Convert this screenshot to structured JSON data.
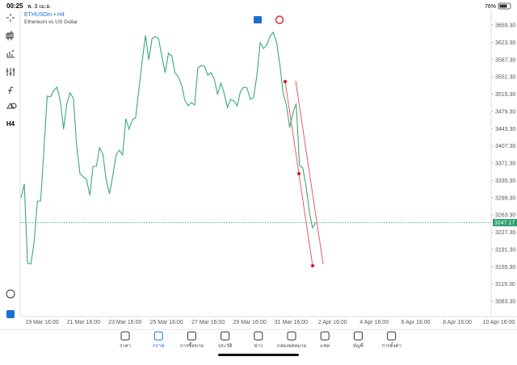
{
  "status_bar": {
    "time": "00:25",
    "date": "พ. 3 เม.ย.",
    "battery": "76%"
  },
  "chart": {
    "symbol": "ETHUSDm • H4",
    "description": "Ethereum vs US Dollar",
    "timeframe": "H4",
    "values": [
      3298.9,
      3327.5,
      3162.5,
      3160.8,
      3206.3,
      3292.2,
      3292.2,
      3400,
      3511.1,
      3509.4,
      3522.9,
      3529.6,
      3501,
      3442.1,
      3496,
      3517.8,
      3506.1,
      3406.7,
      3349.4,
      3342.7,
      3337.7,
      3304,
      3364.6,
      3364.6,
      3403.3,
      3389.9,
      3337.7,
      3307.3,
      3344.4,
      3388.2,
      3398.3,
      3388.2,
      3464,
      3442.1,
      3462.3,
      3465.6,
      3526.3,
      3585.2,
      3637.4,
      3586.9,
      3630.7,
      3635.7,
      3630.7,
      3593.6,
      3559.9,
      3600.4,
      3595.3,
      3559.9,
      3551.5,
      3534.7,
      3502.7,
      3490.9,
      3497.6,
      3492.6,
      3570,
      3575.1,
      3573.4,
      3554.9,
      3559.9,
      3546.5,
      3514.5,
      3538.1,
      3517.8,
      3487.5,
      3504.4,
      3501,
      3490.9,
      3521.2,
      3529.6,
      3527.9,
      3504.4,
      3507.7,
      3554.9,
      3622.3,
      3610.5,
      3617.2,
      3635.7,
      3644.1,
      3623.9,
      3576.8,
      3517.8,
      3492.6,
      3445.4,
      3475.7,
      3496,
      3366.3,
      3361.2,
      3324.2,
      3270.3,
      3236.6,
      3247.17
    ],
    "last_price": 3247.17,
    "ylim": [
      3083.3,
      3659.3
    ],
    "yticks": [
      {
        "value": 3659.3,
        "label": "3659.30"
      },
      {
        "value": 3623.3,
        "label": "3623.30"
      },
      {
        "value": 3587.3,
        "label": "3587.30"
      },
      {
        "value": 3551.3,
        "label": "3551.30"
      },
      {
        "value": 3515.3,
        "label": "3515.30"
      },
      {
        "value": 3479.3,
        "label": "3479.30"
      },
      {
        "value": 3443.3,
        "label": "3443.30"
      },
      {
        "value": 3407.3,
        "label": "3407.30"
      },
      {
        "value": 3371.3,
        "label": "3371.30"
      },
      {
        "value": 3335.3,
        "label": "3335.30"
      },
      {
        "value": 3299.3,
        "label": "3299.30"
      },
      {
        "value": 3263.3,
        "label": "3263.30"
      },
      {
        "value": 3227.3,
        "label": "3227.30"
      },
      {
        "value": 3191.3,
        "label": "3191.30"
      },
      {
        "value": 3155.3,
        "label": "3155.30"
      },
      {
        "value": 3119.3,
        "label": "3119.30"
      },
      {
        "value": 3083.3,
        "label": "3083.30"
      }
    ],
    "xticks": [
      "19 Mar 16:00",
      "21 Mar 16:00",
      "23 Mar 16:00",
      "25 Mar 16:00",
      "27 Mar 16:00",
      "29 Mar 16:00",
      "31 Mar 16:00",
      "2 Apr 16:00",
      "4 Apr 16:00",
      "6 Apr 16:00",
      "8 Apr 16:00",
      "10 Apr 16:00"
    ]
  },
  "tabs": [
    "ราคา",
    "กราฟ",
    "การซื้อขาย",
    "ประวัติ",
    "ข่าว",
    "กล่องจดหมาย",
    "แชท",
    "บัญชี",
    "การตั้งค่า"
  ]
}
